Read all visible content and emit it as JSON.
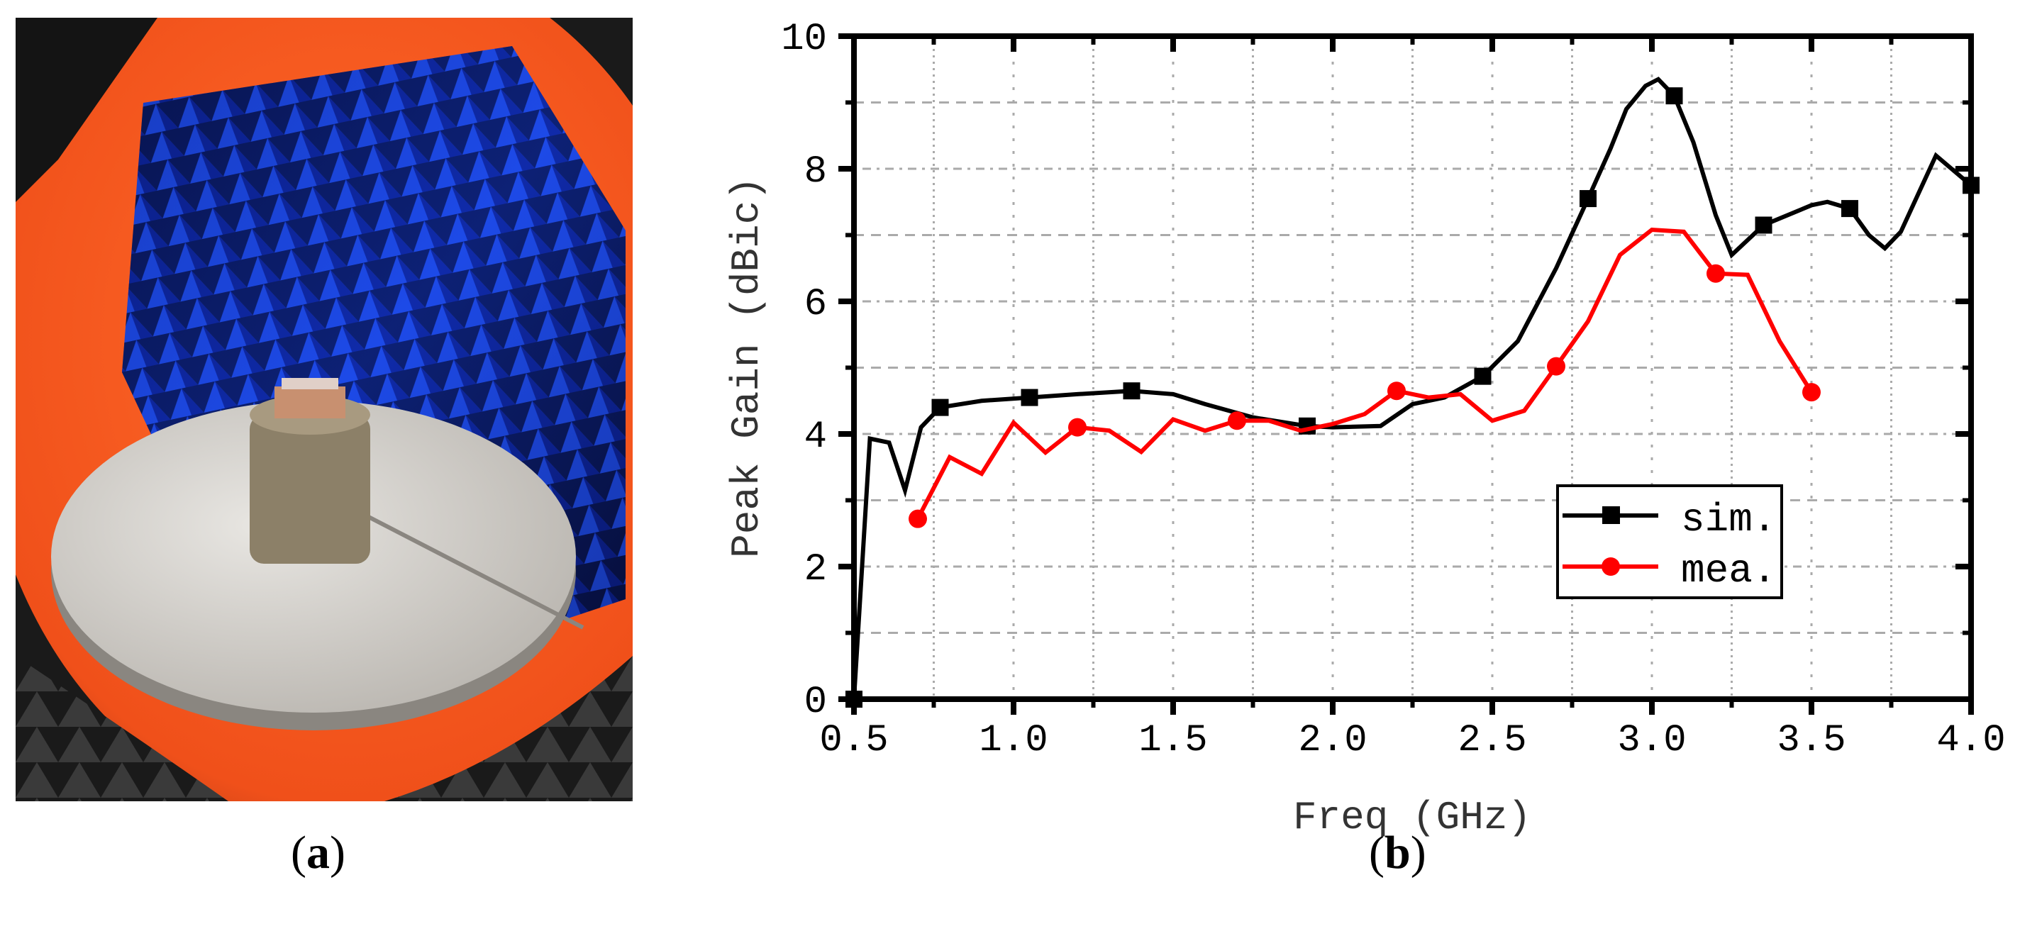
{
  "panels": {
    "a_label": "a",
    "b_label": "b",
    "a_open": "(",
    "a_close": ")"
  },
  "chart_data": {
    "type": "line",
    "title": "",
    "xlabel": "Freq (GHz)",
    "ylabel": "Peak Gain (dBic)",
    "xlim": [
      0.5,
      4.0
    ],
    "ylim": [
      0,
      10
    ],
    "xticks": [
      "0.5",
      "1.0",
      "1.5",
      "2.0",
      "2.5",
      "3.0",
      "3.5",
      "4.0"
    ],
    "yticks": [
      "0",
      "2",
      "4",
      "6",
      "8",
      "10"
    ],
    "grid": true,
    "legend_position": "center-right",
    "series": [
      {
        "name": "sim.",
        "color": "#000000",
        "marker": "square",
        "x": [
          0.5,
          0.55,
          0.61,
          0.66,
          0.71,
          0.77,
          0.9,
          1.05,
          1.2,
          1.37,
          1.5,
          1.6,
          1.75,
          1.92,
          2.0,
          2.15,
          2.25,
          2.35,
          2.47,
          2.58,
          2.7,
          2.8,
          2.87,
          2.92,
          2.98,
          3.02,
          3.07,
          3.13,
          3.2,
          3.25,
          3.35,
          3.5,
          3.55,
          3.62,
          3.68,
          3.73,
          3.78,
          3.89,
          4.0
        ],
        "y": [
          0,
          3.93,
          3.87,
          3.15,
          4.1,
          4.4,
          4.5,
          4.55,
          4.6,
          4.65,
          4.6,
          4.45,
          4.25,
          4.12,
          4.1,
          4.12,
          4.45,
          4.55,
          4.87,
          5.4,
          6.5,
          7.55,
          8.3,
          8.9,
          9.25,
          9.35,
          9.1,
          8.4,
          7.3,
          6.7,
          7.15,
          7.45,
          7.5,
          7.4,
          7.0,
          6.8,
          7.05,
          8.2,
          7.75
        ],
        "marker_x": [
          0.5,
          0.77,
          1.05,
          1.37,
          1.92,
          2.47,
          2.8,
          3.07,
          3.35,
          3.62,
          4.0
        ]
      },
      {
        "name": "mea.",
        "color": "#ff0000",
        "marker": "circle",
        "x": [
          0.7,
          0.8,
          0.9,
          1.0,
          1.1,
          1.2,
          1.3,
          1.4,
          1.5,
          1.6,
          1.7,
          1.8,
          1.9,
          2.0,
          2.1,
          2.2,
          2.3,
          2.4,
          2.5,
          2.6,
          2.7,
          2.8,
          2.9,
          3.0,
          3.1,
          3.2,
          3.3,
          3.4,
          3.5
        ],
        "y": [
          2.72,
          3.65,
          3.4,
          4.17,
          3.72,
          4.1,
          4.05,
          3.73,
          4.22,
          4.05,
          4.2,
          4.2,
          4.05,
          4.15,
          4.3,
          4.65,
          4.55,
          4.6,
          4.2,
          4.35,
          5.02,
          5.7,
          6.7,
          7.08,
          7.05,
          6.42,
          6.4,
          5.4,
          4.63
        ],
        "marker_x": [
          0.7,
          1.2,
          1.7,
          2.2,
          2.7,
          3.2,
          3.5
        ]
      }
    ]
  }
}
